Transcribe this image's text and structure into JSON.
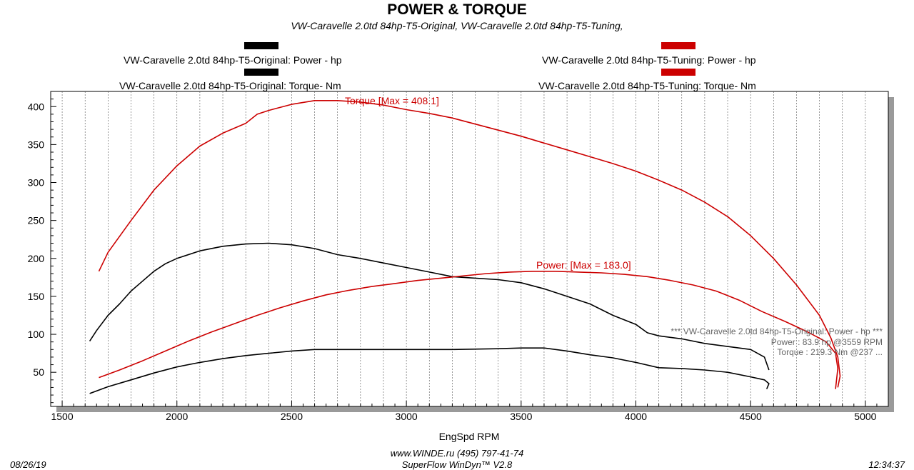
{
  "chart_data": {
    "type": "line",
    "title": "POWER & TORQUE",
    "subtitle": "VW-Caravelle 2.0td 84hp-T5-Original, VW-Caravelle 2.0td 84hp-T5-Tuning,",
    "xlabel": "EngSpd  RPM",
    "ylabel": "",
    "xlim": [
      1450,
      5100
    ],
    "ylim": [
      5,
      420
    ],
    "x_ticks": [
      1500,
      2000,
      2500,
      3000,
      3500,
      4000,
      4500,
      5000
    ],
    "y_ticks": [
      50,
      100,
      150,
      200,
      250,
      300,
      350,
      400
    ],
    "grid": "vertical dashed",
    "legend": [
      {
        "label": "VW-Caravelle 2.0td 84hp-T5-Original: Power -  hp",
        "color": "#000000"
      },
      {
        "label": "VW-Caravelle 2.0td 84hp-T5-Original: Torque-  Nm",
        "color": "#000000"
      },
      {
        "label": "VW-Caravelle 2.0td 84hp-T5-Tuning: Power -  hp",
        "color": "#cc0000"
      },
      {
        "label": "VW-Caravelle 2.0td 84hp-T5-Tuning: Torque-  Nm",
        "color": "#cc0000"
      }
    ],
    "series": [
      {
        "name": "VW-Caravelle 2.0td 84hp-T5-Original: Power -  hp",
        "color": "#000000",
        "x": [
          1620,
          1700,
          1800,
          1900,
          2000,
          2100,
          2200,
          2300,
          2400,
          2500,
          2600,
          2700,
          2800,
          3000,
          3200,
          3400,
          3500,
          3600,
          3700,
          3800,
          3900,
          4000,
          4100,
          4200,
          4300,
          4400,
          4500,
          4560,
          4580,
          4570
        ],
        "y": [
          22,
          31,
          40,
          49,
          57,
          63,
          68,
          72,
          75,
          78,
          80,
          80,
          80,
          80,
          80,
          81,
          82,
          82,
          78,
          73,
          69,
          63,
          56,
          55,
          53,
          50,
          44,
          40,
          35,
          28
        ]
      },
      {
        "name": "VW-Caravelle 2.0td 84hp-T5-Original: Torque-  Nm",
        "color": "#000000",
        "x": [
          1620,
          1650,
          1700,
          1750,
          1800,
          1850,
          1900,
          1950,
          2000,
          2100,
          2200,
          2300,
          2400,
          2500,
          2600,
          2700,
          2800,
          2900,
          3000,
          3100,
          3200,
          3300,
          3400,
          3500,
          3600,
          3700,
          3800,
          3900,
          4000,
          4050,
          4100,
          4200,
          4300,
          4400,
          4500,
          4560,
          4580
        ],
        "y": [
          91,
          105,
          125,
          140,
          157,
          170,
          183,
          193,
          200,
          210,
          216,
          219,
          220,
          218,
          213,
          205,
          200,
          194,
          188,
          182,
          176,
          174,
          172,
          168,
          160,
          150,
          140,
          125,
          113,
          102,
          98,
          94,
          88,
          84,
          80,
          70,
          53
        ]
      },
      {
        "name": "VW-Caravelle 2.0td 84hp-T5-Tuning: Power -  hp",
        "color": "#cc0000",
        "x": [
          1660,
          1750,
          1850,
          1950,
          2050,
          2150,
          2250,
          2350,
          2450,
          2550,
          2650,
          2750,
          2850,
          2950,
          3050,
          3150,
          3250,
          3350,
          3450,
          3550,
          3650,
          3750,
          3850,
          3950,
          4050,
          4150,
          4250,
          4350,
          4450,
          4550,
          4650,
          4750,
          4830,
          4870,
          4880,
          4870
        ],
        "y": [
          43,
          53,
          65,
          78,
          91,
          103,
          114,
          125,
          135,
          144,
          152,
          158,
          163,
          167,
          171,
          174,
          177,
          180,
          182,
          183,
          183,
          182,
          181,
          179,
          176,
          171,
          165,
          157,
          145,
          130,
          117,
          103,
          90,
          75,
          55,
          28
        ]
      },
      {
        "name": "VW-Caravelle 2.0td 84hp-T5-Tuning: Torque-  Nm",
        "color": "#cc0000",
        "x": [
          1660,
          1700,
          1800,
          1900,
          2000,
          2100,
          2200,
          2300,
          2350,
          2400,
          2500,
          2600,
          2700,
          2800,
          2900,
          3000,
          3100,
          3200,
          3300,
          3400,
          3500,
          3600,
          3700,
          3800,
          3900,
          4000,
          4100,
          4200,
          4300,
          4400,
          4500,
          4600,
          4700,
          4800,
          4850,
          4880,
          4890,
          4880
        ],
        "y": [
          183,
          208,
          250,
          290,
          322,
          348,
          365,
          378,
          390,
          395,
          403,
          408,
          408,
          406,
          402,
          396,
          391,
          385,
          377,
          369,
          361,
          352,
          343,
          334,
          325,
          315,
          303,
          290,
          274,
          255,
          230,
          200,
          165,
          125,
          95,
          70,
          45,
          30
        ]
      }
    ],
    "annotations": {
      "torque_max": "Torque [Max = 408.1]",
      "power_max": "Power: [Max = 183.0]",
      "cursor_line1": "*** VW-Caravelle 2.0td 84hp-T5-Original: Power -  hp   ***",
      "cursor_line2": "Power :   83.9 hp      @3559 RPM",
      "cursor_line3": "Torque : 219.3 Nm    @237 ..."
    }
  },
  "footer": {
    "website_phone": "www.WINDE.ru   (495) 797-41-74",
    "software": "SuperFlow WinDyn™  V2.8",
    "date": "08/26/19",
    "time": "12:34:37"
  }
}
